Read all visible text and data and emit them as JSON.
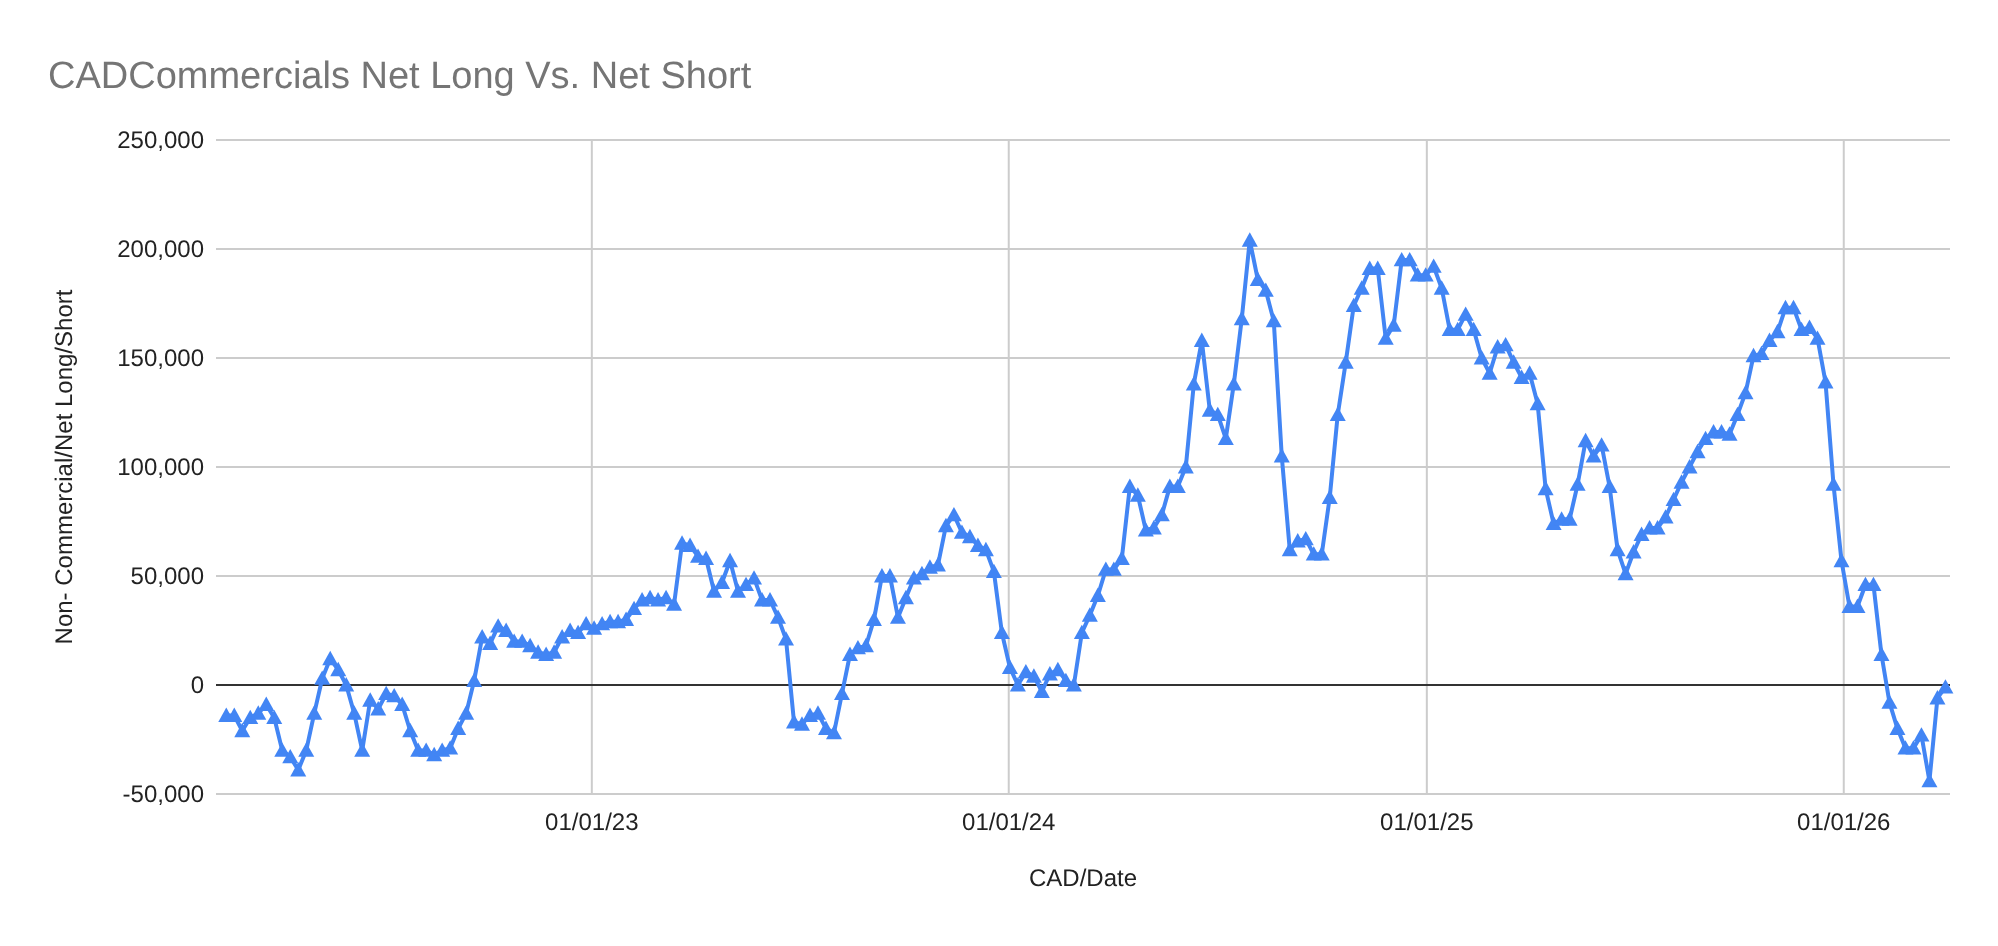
{
  "chart_data": {
    "type": "line",
    "title": "CADCommercials Net Long Vs. Net Short",
    "xlabel": "CAD/Date",
    "ylabel": "Non- Commercial/Net Long/Short",
    "x": [
      "2022-02-15",
      "2022-02-22",
      "2022-03-01",
      "2022-03-08",
      "2022-03-15",
      "2022-03-22",
      "2022-03-29",
      "2022-04-05",
      "2022-04-12",
      "2022-04-19",
      "2022-04-26",
      "2022-05-03",
      "2022-05-10",
      "2022-05-17",
      "2022-05-24",
      "2022-05-31",
      "2022-06-07",
      "2022-06-14",
      "2022-06-21",
      "2022-06-28",
      "2022-07-05",
      "2022-07-12",
      "2022-07-19",
      "2022-07-26",
      "2022-08-02",
      "2022-08-09",
      "2022-08-16",
      "2022-08-23",
      "2022-08-30",
      "2022-09-06",
      "2022-09-13",
      "2022-09-20",
      "2022-09-27",
      "2022-10-04",
      "2022-10-11",
      "2022-10-18",
      "2022-10-25",
      "2022-11-01",
      "2022-11-08",
      "2022-11-15",
      "2022-11-22",
      "2022-11-29",
      "2022-12-06",
      "2022-12-13",
      "2022-12-20",
      "2022-12-27",
      "2023-01-03",
      "2023-01-10",
      "2023-01-17",
      "2023-01-24",
      "2023-01-31",
      "2023-02-07",
      "2023-02-14",
      "2023-02-21",
      "2023-02-28",
      "2023-03-07",
      "2023-03-14",
      "2023-03-21",
      "2023-03-28",
      "2023-04-04",
      "2023-04-11",
      "2023-04-18",
      "2023-04-25",
      "2023-05-02",
      "2023-05-09",
      "2023-05-16",
      "2023-05-23",
      "2023-05-30",
      "2023-06-06",
      "2023-06-13",
      "2023-06-20",
      "2023-06-27",
      "2023-07-04",
      "2023-07-11",
      "2023-07-18",
      "2023-07-25",
      "2023-08-01",
      "2023-08-08",
      "2023-08-15",
      "2023-08-22",
      "2023-08-29",
      "2023-09-05",
      "2023-09-12",
      "2023-09-19",
      "2023-09-26",
      "2023-10-03",
      "2023-10-10",
      "2023-10-17",
      "2023-10-24",
      "2023-10-31",
      "2023-11-07",
      "2023-11-14",
      "2023-11-21",
      "2023-11-28",
      "2023-12-05",
      "2023-12-12",
      "2023-12-19",
      "2023-12-26",
      "2024-01-02",
      "2024-01-09",
      "2024-01-16",
      "2024-01-23",
      "2024-01-30",
      "2024-02-06",
      "2024-02-13",
      "2024-02-20",
      "2024-02-27",
      "2024-03-05",
      "2024-03-12",
      "2024-03-19",
      "2024-03-26",
      "2024-04-02",
      "2024-04-09",
      "2024-04-16",
      "2024-04-23",
      "2024-04-30",
      "2024-05-07",
      "2024-05-14",
      "2024-05-21",
      "2024-05-28",
      "2024-06-04",
      "2024-06-11",
      "2024-06-18",
      "2024-06-25",
      "2024-07-02",
      "2024-07-09",
      "2024-07-16",
      "2024-07-23",
      "2024-07-30",
      "2024-08-06",
      "2024-08-13",
      "2024-08-20",
      "2024-08-27",
      "2024-09-03",
      "2024-09-10",
      "2024-09-17",
      "2024-09-24",
      "2024-10-01",
      "2024-10-08",
      "2024-10-15",
      "2024-10-22",
      "2024-10-29",
      "2024-11-05",
      "2024-11-12",
      "2024-11-19",
      "2024-11-26",
      "2024-12-03",
      "2024-12-10",
      "2024-12-17",
      "2024-12-24",
      "2024-12-31",
      "2025-01-07",
      "2025-01-14",
      "2025-01-21",
      "2025-01-28",
      "2025-02-04",
      "2025-02-11",
      "2025-02-18",
      "2025-02-25",
      "2025-03-04",
      "2025-03-11",
      "2025-03-18",
      "2025-03-25",
      "2025-04-01",
      "2025-04-08",
      "2025-04-15",
      "2025-04-22",
      "2025-04-29",
      "2025-05-06",
      "2025-05-13",
      "2025-05-20",
      "2025-05-27",
      "2025-06-03",
      "2025-06-10",
      "2025-06-17",
      "2025-06-24",
      "2025-07-01",
      "2025-07-08",
      "2025-07-15",
      "2025-07-22",
      "2025-07-29",
      "2025-08-05",
      "2025-08-12",
      "2025-08-19",
      "2025-08-26",
      "2025-09-02",
      "2025-09-09",
      "2025-09-16",
      "2025-09-23",
      "2025-09-30",
      "2025-10-07",
      "2025-10-14",
      "2025-10-21",
      "2025-10-28",
      "2025-11-04",
      "2025-11-11",
      "2025-11-18",
      "2025-11-25",
      "2025-12-02",
      "2025-12-09",
      "2025-12-16",
      "2025-12-23",
      "2025-12-30",
      "2026-01-06",
      "2026-01-13",
      "2026-01-20",
      "2026-01-27",
      "2026-02-03",
      "2026-02-10",
      "2026-02-17",
      "2026-02-24",
      "2026-03-03",
      "2026-03-10",
      "2026-03-17",
      "2026-03-24",
      "2026-03-31"
    ],
    "series": [
      {
        "color": "#4285f4",
        "values": [
          -14000,
          -14000,
          -21000,
          -15000,
          -13000,
          -9000,
          -15000,
          -30000,
          -33000,
          -39000,
          -30000,
          -13000,
          3000,
          12000,
          7000,
          0,
          -13000,
          -30000,
          -7000,
          -11000,
          -4000,
          -5000,
          -9000,
          -21000,
          -30000,
          -30000,
          -32000,
          -30000,
          -29000,
          -20000,
          -13000,
          2000,
          22000,
          19000,
          27000,
          25000,
          20000,
          20000,
          18000,
          15000,
          14000,
          15000,
          22000,
          25000,
          24000,
          28000,
          26000,
          28000,
          29000,
          29000,
          30000,
          35000,
          39000,
          40000,
          39000,
          40000,
          37000,
          65000,
          64000,
          59000,
          58000,
          43000,
          47000,
          57000,
          43000,
          46000,
          49000,
          39000,
          39000,
          31000,
          21000,
          -17000,
          -18000,
          -14000,
          -13000,
          -20000,
          -22000,
          -4000,
          14000,
          17000,
          18000,
          30000,
          50000,
          50000,
          31000,
          40000,
          49000,
          51000,
          54000,
          55000,
          73000,
          78000,
          70000,
          68000,
          64000,
          62000,
          52000,
          24000,
          8000,
          0,
          6000,
          4000,
          -3000,
          5000,
          7000,
          2000,
          0,
          24000,
          32000,
          41000,
          53000,
          53000,
          58000,
          91000,
          87000,
          71000,
          72000,
          78000,
          91000,
          91000,
          100000,
          138000,
          158000,
          126000,
          124000,
          113000,
          138000,
          168000,
          204000,
          186000,
          181000,
          167000,
          105000,
          62000,
          66000,
          67000,
          60000,
          60000,
          86000,
          124000,
          148000,
          174000,
          182000,
          191000,
          191000,
          159000,
          165000,
          195000,
          195000,
          188000,
          188000,
          192000,
          182000,
          163000,
          163000,
          170000,
          163000,
          150000,
          143000,
          155000,
          156000,
          148000,
          141000,
          143000,
          129000,
          90000,
          74000,
          76000,
          76000,
          92000,
          112000,
          105000,
          110000,
          91000,
          62000,
          51000,
          61000,
          69000,
          72000,
          72000,
          77000,
          85000,
          93000,
          100000,
          107000,
          113000,
          116000,
          116000,
          115000,
          124000,
          134000,
          151000,
          152000,
          158000,
          162000,
          173000,
          173000,
          163000,
          164000,
          159000,
          139000,
          92000,
          57000,
          36000,
          36000,
          46000,
          46000,
          14000,
          -8000,
          -20000,
          -29000,
          -29000,
          -23000,
          -44000,
          -6000,
          -1000
        ]
      }
    ],
    "xlim": [
      "2022-02-06",
      "2026-04-04"
    ],
    "xticks": [
      {
        "value": "2023-01-01",
        "label": "01/01/23"
      },
      {
        "value": "2024-01-01",
        "label": "01/01/24"
      },
      {
        "value": "2025-01-01",
        "label": "01/01/25"
      },
      {
        "value": "2026-01-01",
        "label": "01/01/26"
      }
    ],
    "ylim": [
      -50000,
      250000
    ],
    "yticks": [
      {
        "value": -50000,
        "label": "-50,000"
      },
      0,
      {
        "value": 50000,
        "label": "50,000"
      },
      {
        "value": 100000,
        "label": "100,000"
      },
      {
        "value": 150000,
        "label": "150,000"
      },
      {
        "value": 200000,
        "label": "200,000"
      },
      {
        "value": 250000,
        "label": "250,000"
      }
    ],
    "grid": true,
    "marker": "triangle",
    "line_style": "solid"
  }
}
